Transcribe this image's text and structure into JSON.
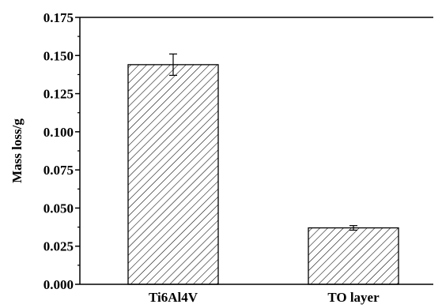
{
  "chart_data": {
    "type": "bar",
    "categories": [
      "Ti6Al4V",
      "TO layer"
    ],
    "values": [
      0.144,
      0.037
    ],
    "error": [
      0.007,
      0.0015
    ],
    "xlabel": "",
    "ylabel": "Mass loss/g",
    "ylim": [
      0,
      0.175
    ],
    "yticks": [
      "0.000",
      "0.025",
      "0.050",
      "0.075",
      "0.100",
      "0.125",
      "0.150",
      "0.175"
    ],
    "bar_fill": "diagonal-hatch",
    "colors": {
      "axis": "#000000",
      "bar_stroke": "#000000",
      "hatch": "#000000",
      "background": "#ffffff"
    },
    "grid": false,
    "legend": "none"
  }
}
